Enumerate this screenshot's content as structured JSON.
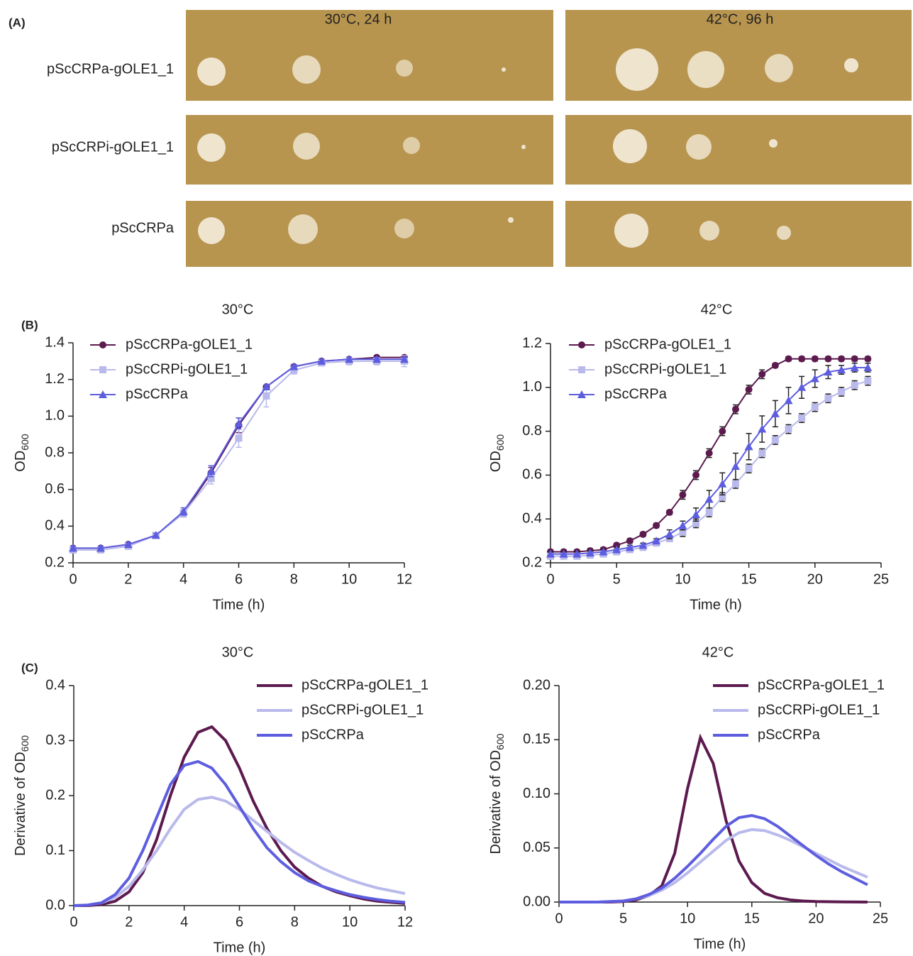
{
  "panel_labels": [
    "(A)",
    "(B)",
    "(C)"
  ],
  "plates": {
    "conditions": [
      "30°C, 24 h",
      "42°C, 96 h"
    ],
    "strains": [
      "pScCRPa-gOLE1_1",
      "pScCRPi-gOLE1_1",
      "pScCRPa"
    ]
  },
  "chart_data": [
    {
      "type": "line",
      "title": "30°C",
      "xlabel": "Time (h)",
      "ylabel": "OD",
      "ylabel_sub": "600",
      "x": [
        0,
        1,
        2,
        3,
        4,
        5,
        6,
        7,
        8,
        9,
        10,
        11,
        12
      ],
      "xlim": [
        0,
        12
      ],
      "xticks": [
        0,
        2,
        4,
        6,
        8,
        10,
        12
      ],
      "ylim": [
        0.2,
        1.4
      ],
      "yticks": [
        0.2,
        0.4,
        0.6,
        0.8,
        {
          "value": 1,
          "label": "1.0"
        },
        1.2,
        1.4
      ],
      "series": [
        {
          "name": "pScCRPa-gOLE1_1",
          "color": "#5c1a4f",
          "marker": "circle",
          "values": [
            0.28,
            0.28,
            0.3,
            0.35,
            0.47,
            0.69,
            0.95,
            1.16,
            1.27,
            1.3,
            1.31,
            1.32,
            1.32
          ],
          "errors": [
            0.01,
            0.01,
            0.01,
            0.01,
            0.02,
            0.03,
            0.04,
            0.01,
            0.01,
            0.01,
            0.01,
            0.01,
            0.01
          ]
        },
        {
          "name": "pScCRPi-gOLE1_1",
          "color": "#b9b9ec",
          "marker": "square",
          "values": [
            0.27,
            0.27,
            0.29,
            0.35,
            0.47,
            0.66,
            0.88,
            1.11,
            1.25,
            1.29,
            1.3,
            1.3,
            1.3
          ],
          "errors": [
            0.01,
            0.01,
            0.01,
            0.01,
            0.02,
            0.03,
            0.05,
            0.06,
            0.02,
            0.01,
            0.02,
            0.02,
            0.03
          ]
        },
        {
          "name": "pScCRPa",
          "color": "#5d5de0",
          "marker": "triangle",
          "values": [
            0.28,
            0.28,
            0.3,
            0.35,
            0.48,
            0.7,
            0.96,
            1.16,
            1.27,
            1.3,
            1.31,
            1.31,
            1.31
          ],
          "errors": [
            0.01,
            0.01,
            0.01,
            0.01,
            0.02,
            0.03,
            0.03,
            0.01,
            0.01,
            0.01,
            0.01,
            0.01,
            0.01
          ]
        }
      ]
    },
    {
      "type": "line",
      "title": "42°C",
      "xlabel": "Time (h)",
      "ylabel": "OD",
      "ylabel_sub": "600",
      "x": [
        0,
        1,
        2,
        3,
        4,
        5,
        6,
        7,
        8,
        9,
        10,
        11,
        12,
        13,
        14,
        15,
        16,
        17,
        18,
        19,
        20,
        21,
        22,
        23,
        24
      ],
      "xlim": [
        0,
        25
      ],
      "xticks": [
        0,
        5,
        10,
        15,
        20,
        25
      ],
      "ylim": [
        0.2,
        1.2
      ],
      "yticks": [
        0.2,
        0.4,
        0.6,
        0.8,
        {
          "value": 1,
          "label": "1.0"
        },
        1.2
      ],
      "series": [
        {
          "name": "pScCRPa-gOLE1_1",
          "color": "#5c1a4f",
          "marker": "circle",
          "values": [
            0.25,
            0.25,
            0.25,
            0.255,
            0.26,
            0.28,
            0.3,
            0.33,
            0.37,
            0.43,
            0.51,
            0.6,
            0.7,
            0.8,
            0.9,
            0.99,
            1.06,
            1.1,
            1.13,
            1.13,
            1.13,
            1.13,
            1.13,
            1.13,
            1.13
          ],
          "errors": [
            0.01,
            0.01,
            0.01,
            0.01,
            0.01,
            0.01,
            0.01,
            0.01,
            0.01,
            0.01,
            0.02,
            0.02,
            0.02,
            0.02,
            0.02,
            0.02,
            0.02,
            0.01,
            0.01,
            0.01,
            0.01,
            0.01,
            0.01,
            0.01,
            0.01
          ]
        },
        {
          "name": "pScCRPi-gOLE1_1",
          "color": "#b9b9ec",
          "marker": "square",
          "values": [
            0.23,
            0.23,
            0.23,
            0.235,
            0.24,
            0.25,
            0.26,
            0.27,
            0.29,
            0.31,
            0.34,
            0.38,
            0.43,
            0.5,
            0.56,
            0.63,
            0.7,
            0.76,
            0.81,
            0.86,
            0.91,
            0.95,
            0.98,
            1.01,
            1.03
          ],
          "errors": [
            0.01,
            0.01,
            0.01,
            0.01,
            0.01,
            0.01,
            0.01,
            0.01,
            0.01,
            0.01,
            0.02,
            0.02,
            0.02,
            0.02,
            0.02,
            0.02,
            0.02,
            0.02,
            0.02,
            0.02,
            0.02,
            0.02,
            0.02,
            0.02,
            0.02
          ]
        },
        {
          "name": "pScCRPa",
          "color": "#5d5de0",
          "marker": "triangle",
          "values": [
            0.24,
            0.24,
            0.24,
            0.245,
            0.25,
            0.26,
            0.27,
            0.28,
            0.3,
            0.33,
            0.37,
            0.42,
            0.49,
            0.56,
            0.64,
            0.73,
            0.81,
            0.88,
            0.94,
            1.0,
            1.04,
            1.07,
            1.08,
            1.09,
            1.09
          ],
          "errors": [
            0.01,
            0.01,
            0.01,
            0.01,
            0.01,
            0.01,
            0.01,
            0.01,
            0.01,
            0.02,
            0.02,
            0.03,
            0.04,
            0.05,
            0.06,
            0.06,
            0.06,
            0.06,
            0.06,
            0.05,
            0.04,
            0.03,
            0.02,
            0.02,
            0.02
          ]
        }
      ]
    },
    {
      "type": "line",
      "title": "30°C",
      "xlabel": "Time (h)",
      "ylabel": "Derivative of OD",
      "ylabel_sub": "600",
      "x": [
        0,
        0.5,
        1,
        1.5,
        2,
        2.5,
        3,
        3.5,
        4,
        4.5,
        5,
        5.5,
        6,
        6.5,
        7,
        7.5,
        8,
        8.5,
        9,
        9.5,
        10,
        10.5,
        11,
        11.5,
        12
      ],
      "xlim": [
        0,
        12
      ],
      "xticks": [
        0,
        2,
        4,
        6,
        8,
        10,
        12
      ],
      "ylim": [
        0,
        0.4
      ],
      "yticks": [
        {
          "value": 0,
          "label": "0.0"
        },
        0.1,
        0.2,
        0.3,
        0.4
      ],
      "series": [
        {
          "name": "pScCRPa-gOLE1_1",
          "color": "#5c1a4f",
          "values": [
            0,
            0,
            0.002,
            0.008,
            0.025,
            0.06,
            0.12,
            0.2,
            0.27,
            0.315,
            0.325,
            0.3,
            0.25,
            0.19,
            0.14,
            0.1,
            0.07,
            0.05,
            0.035,
            0.025,
            0.018,
            0.012,
            0.008,
            0.006,
            0.004
          ]
        },
        {
          "name": "pScCRPi-gOLE1_1",
          "color": "#b9b9ec",
          "values": [
            0,
            0.001,
            0.005,
            0.015,
            0.035,
            0.065,
            0.1,
            0.14,
            0.175,
            0.193,
            0.197,
            0.19,
            0.175,
            0.155,
            0.135,
            0.115,
            0.097,
            0.082,
            0.068,
            0.057,
            0.047,
            0.039,
            0.032,
            0.027,
            0.022
          ]
        },
        {
          "name": "pScCRPa",
          "color": "#5d5de0",
          "values": [
            0,
            0.001,
            0.005,
            0.02,
            0.05,
            0.1,
            0.16,
            0.22,
            0.255,
            0.262,
            0.25,
            0.22,
            0.18,
            0.14,
            0.105,
            0.08,
            0.06,
            0.045,
            0.035,
            0.027,
            0.02,
            0.015,
            0.011,
            0.008,
            0.006
          ]
        }
      ]
    },
    {
      "type": "line",
      "title": "42°C",
      "xlabel": "Time (h)",
      "ylabel": "Derivative of OD",
      "ylabel_sub": "600",
      "x": [
        0,
        1,
        2,
        3,
        4,
        5,
        6,
        7,
        8,
        9,
        10,
        11,
        12,
        13,
        14,
        15,
        16,
        17,
        18,
        19,
        20,
        21,
        22,
        23,
        24
      ],
      "xlim": [
        0,
        25
      ],
      "xticks": [
        0,
        5,
        10,
        15,
        20,
        25
      ],
      "ylim": [
        0,
        0.2
      ],
      "yticks": [
        {
          "value": 0,
          "label": "0.00"
        },
        {
          "value": 0.05,
          "label": "0.05"
        },
        {
          "value": 0.1,
          "label": "0.10"
        },
        {
          "value": 0.15,
          "label": "0.15"
        },
        {
          "value": 0.2,
          "label": "0.20"
        }
      ],
      "series": [
        {
          "name": "pScCRPa-gOLE1_1",
          "color": "#5c1a4f",
          "values": [
            0,
            0,
            0,
            0,
            0,
            0.0005,
            0.002,
            0.006,
            0.015,
            0.045,
            0.105,
            0.152,
            0.128,
            0.075,
            0.038,
            0.018,
            0.008,
            0.004,
            0.002,
            0.001,
            0.0005,
            0.0003,
            0.0002,
            0.0001,
            0
          ]
        },
        {
          "name": "pScCRPi-gOLE1_1",
          "color": "#b9b9ec",
          "values": [
            0,
            0,
            0,
            0,
            0.0005,
            0.001,
            0.003,
            0.006,
            0.011,
            0.018,
            0.027,
            0.037,
            0.047,
            0.057,
            0.064,
            0.067,
            0.066,
            0.062,
            0.057,
            0.051,
            0.045,
            0.039,
            0.033,
            0.028,
            0.023
          ]
        },
        {
          "name": "pScCRPa",
          "color": "#5d5de0",
          "values": [
            0,
            0,
            0,
            0,
            0.0005,
            0.001,
            0.003,
            0.007,
            0.013,
            0.022,
            0.033,
            0.045,
            0.058,
            0.07,
            0.078,
            0.08,
            0.077,
            0.07,
            0.061,
            0.052,
            0.043,
            0.035,
            0.028,
            0.022,
            0.016
          ]
        }
      ]
    }
  ]
}
